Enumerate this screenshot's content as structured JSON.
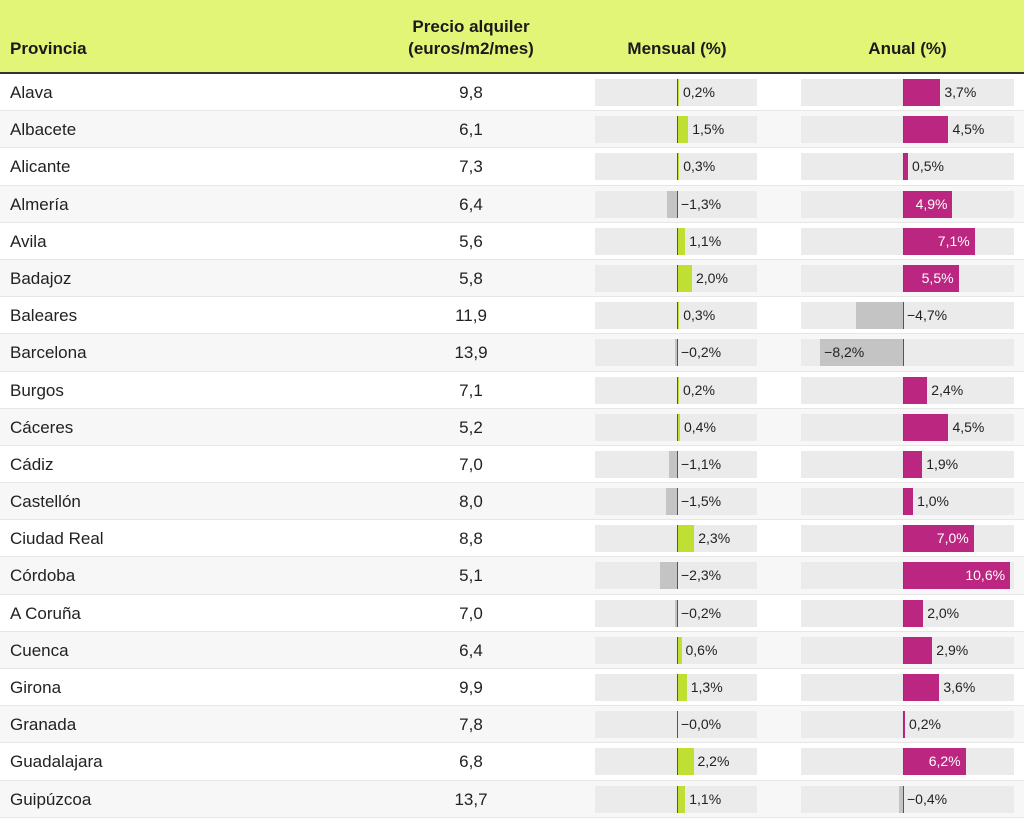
{
  "header": {
    "provincia": "Provincia",
    "precio_line1": "Precio alquiler",
    "precio_line2": "(euros/m2/mes)",
    "mensual": "Mensual (%)",
    "anual": "Anual (%)"
  },
  "colors": {
    "header_bg": "#e2f576",
    "mensual_positive": "#bfe032",
    "anual_positive": "#bb2680",
    "negative": "#c4c4c4",
    "track": "#ebebeb"
  },
  "chart_data": {
    "type": "table",
    "title": "",
    "columns": [
      "Provincia",
      "Precio alquiler (euros/m2/mes)",
      "Mensual (%)",
      "Anual (%)"
    ],
    "rows": [
      {
        "provincia": "Alava",
        "precio": "9,8",
        "mensual": 0.2,
        "mensual_label": "0,2%",
        "anual": 3.7,
        "anual_label": "3,7%"
      },
      {
        "provincia": "Albacete",
        "precio": "6,1",
        "mensual": 1.5,
        "mensual_label": "1,5%",
        "anual": 4.5,
        "anual_label": "4,5%"
      },
      {
        "provincia": "Alicante",
        "precio": "7,3",
        "mensual": 0.3,
        "mensual_label": "0,3%",
        "anual": 0.5,
        "anual_label": "0,5%"
      },
      {
        "provincia": "Almería",
        "precio": "6,4",
        "mensual": -1.3,
        "mensual_label": "−1,3%",
        "anual": 4.9,
        "anual_label": "4,9%"
      },
      {
        "provincia": "Avila",
        "precio": "5,6",
        "mensual": 1.1,
        "mensual_label": "1,1%",
        "anual": 7.1,
        "anual_label": "7,1%"
      },
      {
        "provincia": "Badajoz",
        "precio": "5,8",
        "mensual": 2.0,
        "mensual_label": "2,0%",
        "anual": 5.5,
        "anual_label": "5,5%"
      },
      {
        "provincia": "Baleares",
        "precio": "11,9",
        "mensual": 0.3,
        "mensual_label": "0,3%",
        "anual": -4.7,
        "anual_label": "−4,7%"
      },
      {
        "provincia": "Barcelona",
        "precio": "13,9",
        "mensual": -0.2,
        "mensual_label": "−0,2%",
        "anual": -8.2,
        "anual_label": "−8,2%"
      },
      {
        "provincia": "Burgos",
        "precio": "7,1",
        "mensual": 0.2,
        "mensual_label": "0,2%",
        "anual": 2.4,
        "anual_label": "2,4%"
      },
      {
        "provincia": "Cáceres",
        "precio": "5,2",
        "mensual": 0.4,
        "mensual_label": "0,4%",
        "anual": 4.5,
        "anual_label": "4,5%"
      },
      {
        "provincia": "Cádiz",
        "precio": "7,0",
        "mensual": -1.1,
        "mensual_label": "−1,1%",
        "anual": 1.9,
        "anual_label": "1,9%"
      },
      {
        "provincia": "Castellón",
        "precio": "8,0",
        "mensual": -1.5,
        "mensual_label": "−1,5%",
        "anual": 1.0,
        "anual_label": "1,0%"
      },
      {
        "provincia": "Ciudad Real",
        "precio": "8,8",
        "mensual": 2.3,
        "mensual_label": "2,3%",
        "anual": 7.0,
        "anual_label": "7,0%"
      },
      {
        "provincia": "Córdoba",
        "precio": "5,1",
        "mensual": -2.3,
        "mensual_label": "−2,3%",
        "anual": 10.6,
        "anual_label": "10,6%"
      },
      {
        "provincia": "A Coruña",
        "precio": "7,0",
        "mensual": -0.2,
        "mensual_label": "−0,2%",
        "anual": 2.0,
        "anual_label": "2,0%"
      },
      {
        "provincia": "Cuenca",
        "precio": "6,4",
        "mensual": 0.6,
        "mensual_label": "0,6%",
        "anual": 2.9,
        "anual_label": "2,9%"
      },
      {
        "provincia": "Girona",
        "precio": "9,9",
        "mensual": 1.3,
        "mensual_label": "1,3%",
        "anual": 3.6,
        "anual_label": "3,6%"
      },
      {
        "provincia": "Granada",
        "precio": "7,8",
        "mensual": -0.0,
        "mensual_label": "−0,0%",
        "anual": 0.2,
        "anual_label": "0,2%"
      },
      {
        "provincia": "Guadalajara",
        "precio": "6,8",
        "mensual": 2.2,
        "mensual_label": "2,2%",
        "anual": 6.2,
        "anual_label": "6,2%"
      },
      {
        "provincia": "Guipúzcoa",
        "precio": "13,7",
        "mensual": 1.1,
        "mensual_label": "1,1%",
        "anual": -0.4,
        "anual_label": "−0,4%"
      }
    ],
    "mensual_range": [
      -10.8,
      10.8
    ],
    "anual_range": [
      -8.2,
      10.6
    ]
  }
}
